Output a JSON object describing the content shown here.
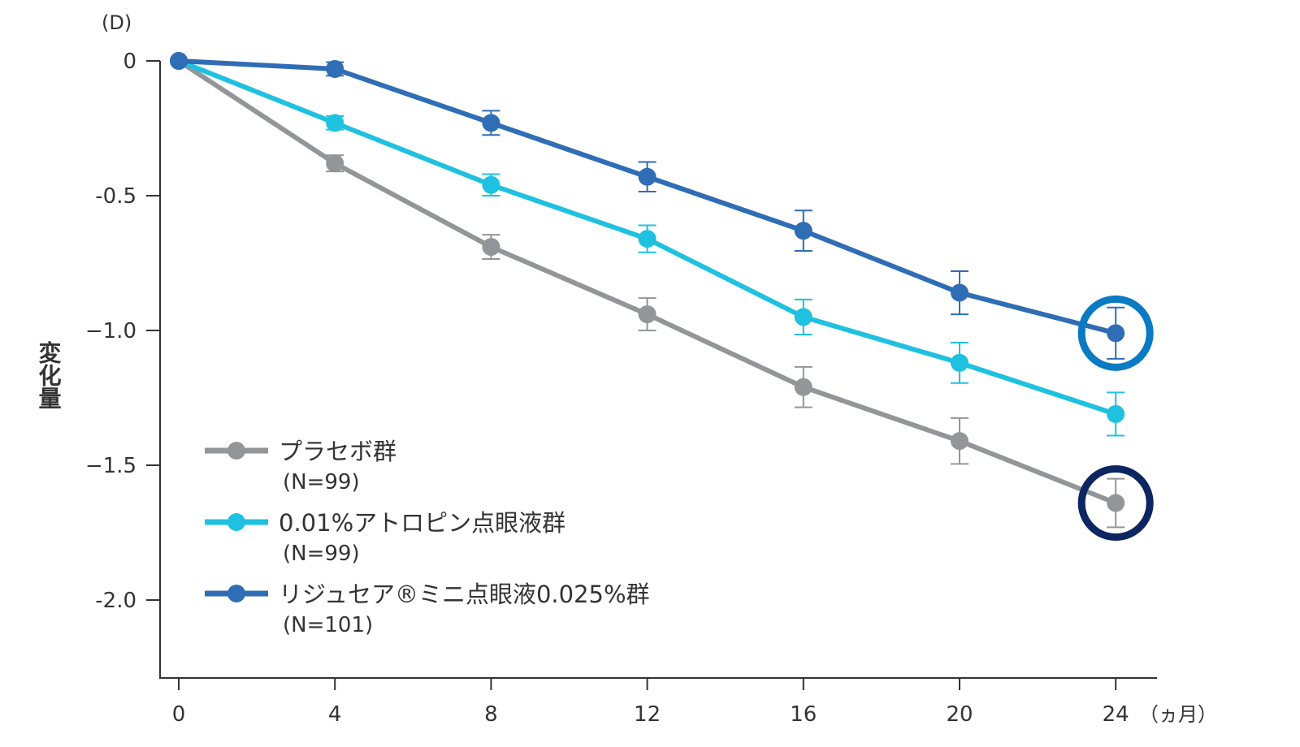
{
  "chart_data": {
    "type": "line",
    "unit_label": "(D)",
    "ylabel": "変化量",
    "xlabel_unit": "（ヵ月）",
    "x": [
      0,
      4,
      8,
      12,
      16,
      20,
      24
    ],
    "xlim": [
      0,
      24
    ],
    "ylim": [
      -2.3,
      0
    ],
    "x_ticks": [
      "0",
      "4",
      "8",
      "12",
      "16",
      "20",
      "24"
    ],
    "y_ticks": [
      {
        "value": 0,
        "label": "0"
      },
      {
        "value": -0.5,
        "label": "-0.5"
      },
      {
        "value": -1.0,
        "label": "−1.0"
      },
      {
        "value": -1.5,
        "label": "−1.5"
      },
      {
        "value": -2.0,
        "label": "-2.0"
      }
    ],
    "grid": false,
    "legend_placement": "bottom-left",
    "series": [
      {
        "name": "プラセボ群",
        "n_label": "(N=99)",
        "color": "#939598",
        "values": [
          0,
          -0.38,
          -0.69,
          -0.94,
          -1.21,
          -1.41,
          -1.64
        ],
        "errors": [
          0,
          0.03,
          0.045,
          0.06,
          0.075,
          0.085,
          0.09
        ]
      },
      {
        "name": "0.01%アトロピン点眼液群",
        "n_label": "(N=99)",
        "color": "#1fc1e0",
        "values": [
          0,
          -0.23,
          -0.46,
          -0.66,
          -0.95,
          -1.12,
          -1.31
        ],
        "errors": [
          0,
          0.025,
          0.04,
          0.05,
          0.065,
          0.075,
          0.08
        ]
      },
      {
        "name": "リジュセア®ミニ点眼液0.025%群",
        "n_label": "(N=101)",
        "color": "#2f6db5",
        "values": [
          0,
          -0.03,
          -0.23,
          -0.43,
          -0.63,
          -0.86,
          -1.01
        ],
        "errors": [
          0,
          0.025,
          0.045,
          0.055,
          0.075,
          0.08,
          0.095
        ]
      }
    ],
    "highlights": [
      {
        "series": 2,
        "x": 24,
        "color": "#0a7ac2"
      },
      {
        "series": 0,
        "x": 24,
        "color": "#0d2560"
      }
    ]
  }
}
